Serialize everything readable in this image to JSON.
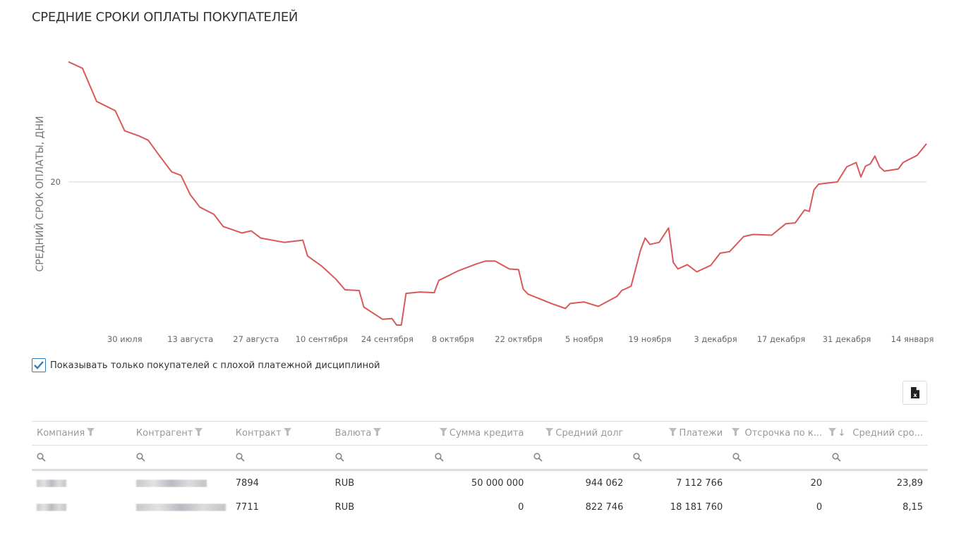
{
  "title": "СРЕДНИЕ СРОКИ ОПЛАТЫ ПОКУПАТЕЛЕЙ",
  "chart_data": {
    "type": "line",
    "title": "СРЕДНИЕ СРОКИ ОПЛАТЫ ПОКУПАТЕЛЕЙ",
    "ylabel": "СРЕДНИЙ СРОК ОПЛАТЫ, ДНИ",
    "xlabel": "",
    "y_ticks": [
      20
    ],
    "grid": "horizontal at y ticks",
    "legend": "none",
    "color": "#d9585a",
    "x_range": [
      "07-18",
      "01-17"
    ],
    "x_ticks": [
      {
        "date": "07-30",
        "label": "30 июля"
      },
      {
        "date": "08-13",
        "label": "13 августа"
      },
      {
        "date": "08-27",
        "label": "27 августа"
      },
      {
        "date": "09-10",
        "label": "10 сентября"
      },
      {
        "date": "09-24",
        "label": "24 сентября"
      },
      {
        "date": "10-08",
        "label": "8 октября"
      },
      {
        "date": "10-22",
        "label": "22 октября"
      },
      {
        "date": "11-05",
        "label": "5 ноября"
      },
      {
        "date": "11-19",
        "label": "19 ноября"
      },
      {
        "date": "12-03",
        "label": "3 декабря"
      },
      {
        "date": "12-17",
        "label": "17 декабря"
      },
      {
        "date": "12-31",
        "label": "31 декабря"
      },
      {
        "date": "01-14",
        "label": "14 января"
      }
    ],
    "series": [
      {
        "x": [
          "07-18",
          "07-21",
          "07-24",
          "07-28",
          "07-30",
          "08-02",
          "08-04",
          "08-06",
          "08-09",
          "08-11",
          "08-13",
          "08-15",
          "08-18",
          "08-20",
          "08-24",
          "08-26",
          "08-28",
          "09-02",
          "09-06",
          "09-07",
          "09-10",
          "09-13",
          "09-15",
          "09-18",
          "09-19",
          "09-23",
          "09-25",
          "09-26",
          "09-27",
          "09-28",
          "10-01",
          "10-04",
          "10-05",
          "10-09",
          "10-13",
          "10-15",
          "10-17",
          "10-20",
          "10-22",
          "10-23",
          "10-24",
          "10-29",
          "11-01",
          "11-02",
          "11-05",
          "11-08",
          "11-12",
          "11-13",
          "11-15",
          "11-17",
          "11-18",
          "11-19",
          "11-21",
          "11-23",
          "11-24",
          "11-25",
          "11-27",
          "11-29",
          "12-02",
          "12-04",
          "12-06",
          "12-09",
          "12-11",
          "12-15",
          "12-18",
          "12-20",
          "12-22",
          "12-23",
          "12-24",
          "12-25",
          "12-29",
          "12-31",
          "01-02",
          "01-03",
          "01-04",
          "01-05",
          "01-06",
          "01-07",
          "01-08",
          "01-11",
          "01-12",
          "01-15",
          "01-17"
        ],
        "y": [
          36.7,
          35.8,
          31.2,
          29.9,
          27.1,
          26.4,
          25.8,
          24.0,
          21.4,
          20.9,
          18.2,
          16.5,
          15.5,
          13.8,
          12.9,
          13.2,
          12.2,
          11.6,
          11.9,
          9.7,
          8.3,
          6.5,
          5.0,
          4.9,
          2.6,
          0.9,
          1.0,
          0.1,
          0.1,
          4.5,
          4.7,
          4.6,
          6.3,
          7.6,
          8.6,
          9.0,
          9.0,
          7.9,
          7.8,
          5.1,
          4.4,
          3.1,
          2.4,
          3.1,
          3.3,
          2.7,
          4.1,
          4.9,
          5.5,
          10.5,
          12.2,
          11.3,
          11.6,
          13.6,
          8.8,
          7.9,
          8.5,
          7.5,
          8.4,
          10.1,
          10.3,
          12.4,
          12.7,
          12.6,
          14.2,
          14.3,
          16.1,
          15.9,
          18.9,
          19.7,
          20.0,
          22.1,
          22.7,
          20.7,
          22.2,
          22.5,
          23.6,
          22.1,
          21.5,
          21.8,
          22.7,
          23.7,
          25.3
        ]
      }
    ]
  },
  "filter": {
    "label": "Показывать только покупателей с плохой платежной дисциплиной",
    "checked": true
  },
  "export": {
    "icon": "excel-export-icon"
  },
  "table": {
    "columns": [
      "Компания",
      "Контрагент",
      "Контракт",
      "Валюта",
      "Сумма кредита",
      "Средний долг",
      "Платежи",
      "Отсрочка по к...",
      "Средний сро..."
    ],
    "sort": {
      "column": "Средний сро...",
      "direction": "descending"
    },
    "rows": [
      {
        "contract": "7894",
        "currency": "RUB",
        "credit": "50 000 000",
        "avg_debt": "944 062",
        "payments": "7 112 766",
        "deferral": "20",
        "avg_term": "23,89"
      },
      {
        "contract": "7711",
        "currency": "RUB",
        "credit": "0",
        "avg_debt": "822 746",
        "payments": "18 181 760",
        "deferral": "0",
        "avg_term": "8,15"
      }
    ]
  }
}
